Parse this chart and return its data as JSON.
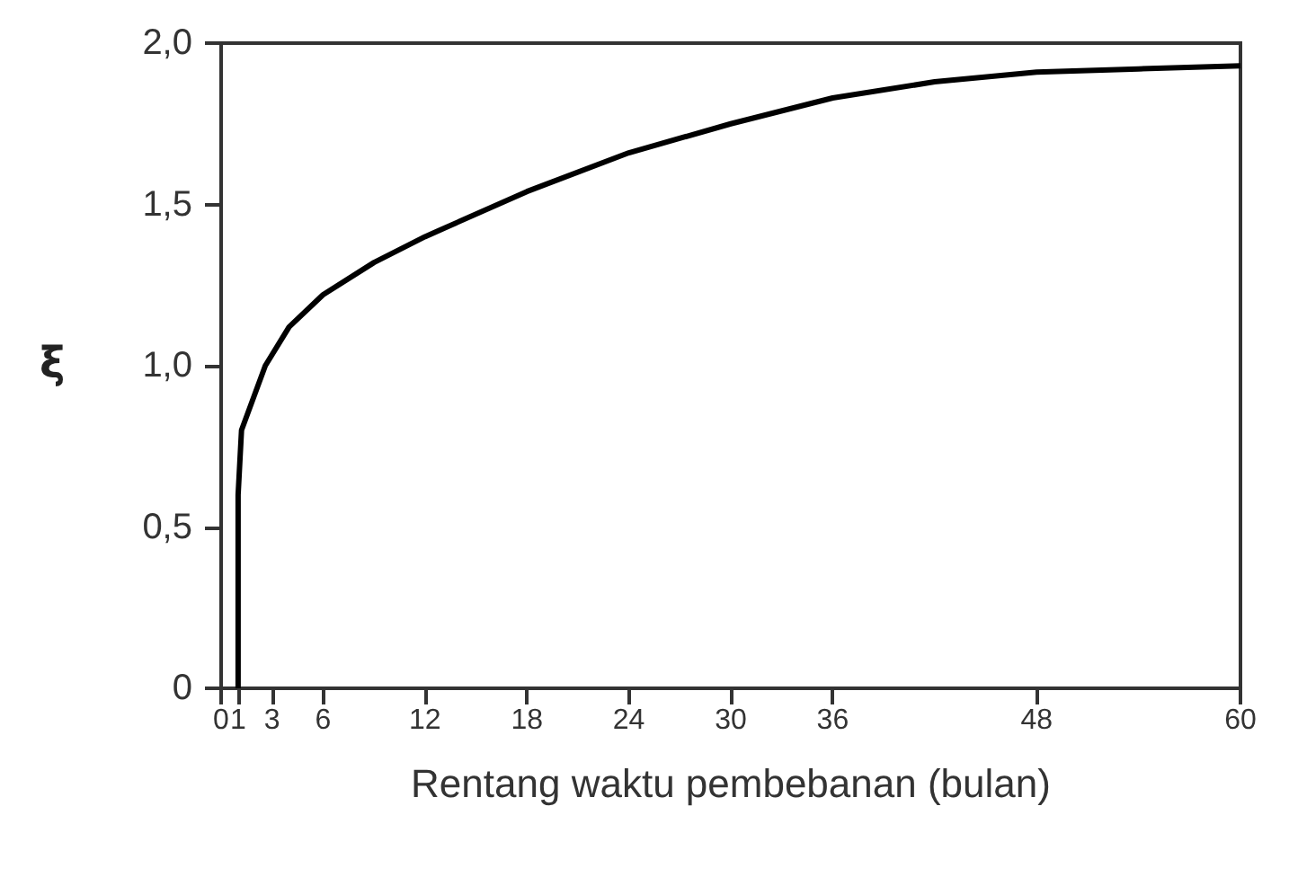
{
  "chart_data": {
    "type": "line",
    "xlabel": "Rentang waktu pembebanan (bulan)",
    "ylabel": "ξ",
    "x": [
      1,
      1,
      1.2,
      2.6,
      4,
      6,
      9,
      12,
      18,
      24,
      30,
      36,
      42,
      48,
      54,
      60
    ],
    "series": [
      {
        "color": "#000000",
        "values": [
          0,
          0.6,
          0.8,
          1.0,
          1.12,
          1.22,
          1.32,
          1.4,
          1.54,
          1.66,
          1.75,
          1.83,
          1.88,
          1.91,
          1.92,
          1.93
        ]
      }
    ],
    "xlim": [
      0,
      60
    ],
    "xticks": [
      0,
      1,
      3,
      6,
      12,
      18,
      24,
      30,
      36,
      48,
      60
    ],
    "ylim": [
      0,
      2
    ],
    "yticks": [
      0,
      {
        "value": 0.5,
        "label": "0,5"
      },
      {
        "value": 1,
        "label": "1,0"
      },
      {
        "value": 1.5,
        "label": "1,5"
      },
      {
        "value": 2,
        "label": "2,0"
      }
    ],
    "grid": false,
    "marker": "none",
    "line_style": "solid"
  }
}
